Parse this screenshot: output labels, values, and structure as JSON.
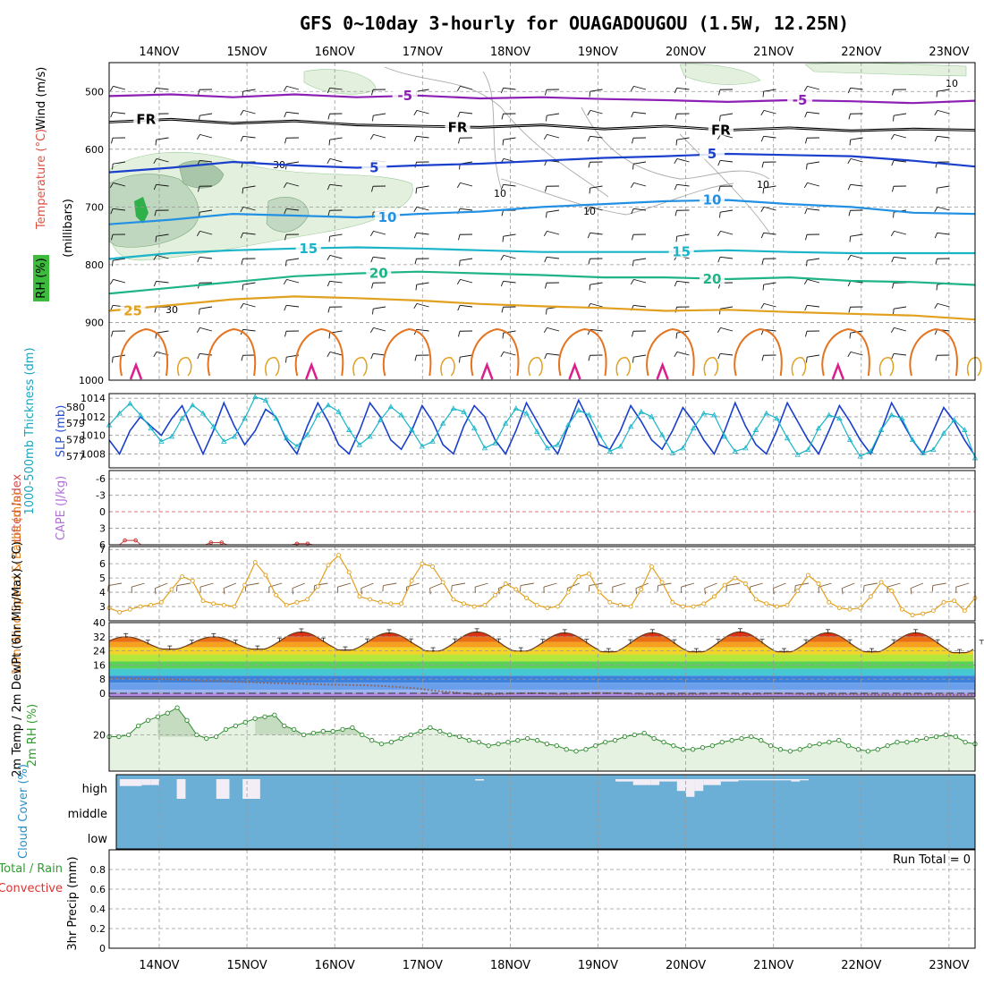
{
  "chart_data": {
    "type": "line",
    "title": "GFS 0~10day 3-hourly for OUAGADOUGOU (1.5W, 12.25N)",
    "x_dates": [
      "14NOV",
      "15NOV",
      "16NOV",
      "17NOV",
      "18NOV",
      "19NOV",
      "20NOV",
      "21NOV",
      "22NOV",
      "23NOV"
    ],
    "x_range_days": [
      -0.45,
      9.85
    ],
    "colors": {
      "purple": "#8c1fb4",
      "black": "#000000",
      "blue": "#1a3fcc",
      "midblue": "#2391e3",
      "cyan": "#19b4c8",
      "green": "#1fb487",
      "gold": "#e1a01e",
      "orange": "#e6731e",
      "magenta": "#dc1e8c",
      "cloud": "#6baed6",
      "rh_fill": "#e6f2e1",
      "temp_band": "#e6501e"
    },
    "panel_upper": {
      "ylabel": "(millibars)",
      "side_labels": {
        "wind": "Wind (m/s)",
        "temperature": "Temperature (°C)",
        "rh": "RH (%)"
      },
      "yticks": [
        500,
        600,
        700,
        800,
        900,
        1000
      ],
      "ylim": [
        450,
        1000
      ],
      "isotherms": [
        {
          "label": "-5",
          "color_key": "purple",
          "p": [
            508,
            505,
            510,
            505,
            510,
            507,
            512,
            510,
            513,
            515,
            518,
            515,
            517,
            520,
            516
          ],
          "labels_at": [
            2.8,
            7.3
          ]
        },
        {
          "label": "FR",
          "color_key": "black",
          "p": [
            553,
            548,
            555,
            551,
            558,
            560,
            562,
            558,
            565,
            560,
            567,
            563,
            568,
            565,
            567
          ],
          "labels_at": [
            -0.15,
            3.4,
            6.4
          ]
        },
        {
          "label": "5",
          "color_key": "blue",
          "p": [
            640,
            632,
            622,
            628,
            632,
            628,
            625,
            620,
            615,
            612,
            608,
            610,
            612,
            620,
            630
          ],
          "labels_at": [
            2.45,
            6.3
          ]
        },
        {
          "label": "10",
          "color_key": "midblue",
          "p": [
            730,
            722,
            712,
            715,
            718,
            712,
            708,
            700,
            695,
            690,
            688,
            695,
            700,
            710,
            712
          ],
          "labels_at": [
            2.6,
            6.3
          ]
        },
        {
          "label": "15",
          "color_key": "cyan",
          "p": [
            790,
            780,
            775,
            772,
            770,
            772,
            775,
            778,
            778,
            778,
            775,
            778,
            780,
            780,
            780
          ],
          "labels_at": [
            1.7,
            5.95
          ]
        },
        {
          "label": "20",
          "color_key": "green",
          "p": [
            850,
            840,
            830,
            820,
            815,
            812,
            815,
            818,
            822,
            822,
            825,
            822,
            828,
            830,
            835
          ],
          "labels_at": [
            2.5,
            6.3
          ]
        },
        {
          "label": "25",
          "color_key": "gold",
          "p": [
            880,
            870,
            860,
            855,
            858,
            862,
            868,
            872,
            875,
            880,
            878,
            882,
            885,
            888,
            895
          ],
          "labels_at": [
            -0.3
          ]
        }
      ],
      "rh_contour_labels": [
        "30",
        "30",
        "10",
        "10",
        "10",
        "10"
      ]
    },
    "panel_thickness_slp": {
      "ylabel_left": "1000-500mb Thickness (dm)",
      "ylabel_right": "SLP (mb)",
      "yticks_left": [
        577,
        578,
        579,
        580
      ],
      "yticks_right": [
        1008,
        1010,
        1012,
        1014
      ],
      "slp": [
        1009.5,
        1008,
        1010.5,
        1012,
        1011,
        1010,
        1011.8,
        1013.2,
        1010.5,
        1008,
        1010.5,
        1013.5,
        1011,
        1009,
        1010.5,
        1012.8,
        1012,
        1009.5,
        1008,
        1011,
        1013.5,
        1011.5,
        1009,
        1008,
        1010.5,
        1013.5,
        1012,
        1009.5,
        1008.5,
        1010.5,
        1013.2,
        1011.5,
        1009,
        1008,
        1011,
        1013.2,
        1012,
        1009.5,
        1008,
        1010.5,
        1013.5,
        1011.5,
        1009.5,
        1008,
        1011,
        1013.8,
        1011.5,
        1009,
        1008.5,
        1010.5,
        1013.2,
        1011.5,
        1009.5,
        1008.5,
        1010.5,
        1013,
        1011.5,
        1009.5,
        1008,
        1010.5,
        1013.5,
        1011,
        1009,
        1008,
        1010.5,
        1013.5,
        1011.5,
        1009.5,
        1008,
        1010.5,
        1013.2,
        1011.5,
        1009.5,
        1008,
        1010.5,
        1013.5,
        1011.5,
        1009.5,
        1008,
        1010.5,
        1013,
        1011.5,
        1009.5,
        1007.8
      ],
      "thickness": [
        578.9,
        579.6,
        580.2,
        579.5,
        578.7,
        577.9,
        578.2,
        579.3,
        580.1,
        579.6,
        578.8,
        577.9,
        578.2,
        579.3,
        580.6,
        580.4,
        579.3,
        578.1,
        577.6,
        578.3,
        579.5,
        580.1,
        579.7,
        578.6,
        577.7,
        578.2,
        579.2,
        580.0,
        579.5,
        578.6,
        577.6,
        577.9,
        579.0,
        579.9,
        579.7,
        578.7,
        577.5,
        577.8,
        579.0,
        579.9,
        579.6,
        578.5,
        577.5,
        577.7,
        578.9,
        579.8,
        579.5,
        578.3,
        577.3,
        577.6,
        578.8,
        579.7,
        579.4,
        578.3,
        577.2,
        577.5,
        578.7,
        579.6,
        579.5,
        578.2,
        577.3,
        577.5,
        578.6,
        579.6,
        579.3,
        578.1,
        577.1,
        577.4,
        578.7,
        579.5,
        579.3,
        578.0,
        577.0,
        577.3,
        578.6,
        579.5,
        579.3,
        578.0,
        577.2,
        577.4,
        578.4,
        579.2,
        578.6,
        576.9
      ]
    },
    "panel_cape_li": {
      "ylabel_left": "Lifted Index",
      "ylabel_right": "CAPE (J/kg)",
      "yticks": [
        "-6",
        "-3",
        "0",
        "3",
        "6"
      ],
      "lifted_index_peaks": [
        5.2,
        5.6,
        5.8
      ]
    },
    "panel_wind": {
      "ylabel": "10m Wind Speed & Barbs (m/s)",
      "yticks": [
        3,
        4,
        5,
        6,
        7
      ],
      "ylim": [
        2.2,
        7
      ],
      "speed": [
        2.9,
        2.6,
        2.8,
        3.0,
        3.1,
        3.3,
        4.2,
        5.1,
        4.8,
        3.4,
        3.2,
        3.1,
        3.0,
        4.5,
        6.1,
        5.2,
        3.8,
        3.1,
        3.3,
        3.5,
        4.4,
        5.9,
        6.6,
        5.4,
        3.7,
        3.5,
        3.3,
        3.2,
        3.2,
        4.8,
        6.0,
        5.8,
        4.7,
        3.5,
        3.2,
        3.0,
        3.1,
        3.8,
        4.6,
        4.2,
        3.6,
        3.1,
        2.9,
        3.0,
        4.0,
        5.1,
        5.3,
        4.0,
        3.3,
        3.1,
        3.0,
        4.2,
        5.8,
        4.7,
        3.3,
        3.0,
        3.0,
        3.2,
        3.7,
        4.5,
        5.0,
        4.6,
        3.5,
        3.2,
        3.0,
        3.1,
        4.1,
        5.2,
        4.6,
        3.3,
        2.9,
        2.8,
        2.9,
        3.7,
        4.7,
        4.1,
        2.8,
        2.4,
        2.5,
        2.7,
        3.3,
        3.4,
        2.7,
        3.6
      ]
    },
    "panel_temp": {
      "ylabel": "2m Temp / 2m DewPt (6hr Min/Max) (°C)",
      "yticks": [
        0,
        8,
        16,
        24,
        32,
        40
      ],
      "ylim": [
        -2,
        40
      ],
      "tmax_daily": [
        31.5,
        34,
        33.5,
        34,
        33.5,
        33.5,
        34,
        33.5,
        33.5,
        33.5
      ],
      "tmin_daily": [
        25,
        25,
        24.5,
        24,
        24,
        23.5,
        23.5,
        23.5,
        23.5,
        23
      ],
      "dewpoint": [
        8.5,
        8.5,
        8.2,
        8,
        7.6,
        7.2,
        7,
        6.5,
        6.3,
        5.8,
        5.6,
        5.3,
        5,
        4.8,
        4.6,
        4.2,
        3.6,
        2.8,
        1.5,
        0.6,
        -0.3,
        -0.7,
        -0.3,
        0,
        0,
        -0.4,
        -0.2,
        0.2,
        0.2,
        -0.3,
        -0.5,
        -0.7,
        -0.7,
        -0.4,
        -0.1,
        -0.6,
        -0.4,
        -0.1,
        -0.3,
        -0.7,
        -0.9,
        -0.5,
        -0.8,
        -1.0,
        -0.8,
        -0.6,
        -0.9,
        -1.0,
        -0.9
      ]
    },
    "panel_rh": {
      "ylabel": "2m RH (%)",
      "yticks": [
        20
      ],
      "ylim": [
        0,
        40
      ],
      "values": [
        19,
        19,
        20,
        25,
        28,
        30,
        32,
        35,
        28,
        20,
        18,
        19,
        23,
        25,
        27,
        29,
        30,
        31,
        25,
        23,
        20,
        21,
        22,
        22,
        23,
        24,
        20,
        17,
        15,
        16,
        18,
        20,
        22,
        24,
        22,
        20,
        19,
        17,
        16,
        14,
        15,
        16,
        17,
        18,
        17,
        15,
        14,
        12,
        11,
        12,
        14,
        16,
        17,
        19,
        20,
        21,
        18,
        16,
        14,
        12,
        12,
        13,
        14,
        16,
        17,
        18,
        19,
        17,
        14,
        12,
        11,
        12,
        14,
        15,
        16,
        17,
        14,
        12,
        11,
        12,
        14,
        16,
        16,
        17,
        18,
        19,
        20,
        19,
        16,
        15
      ],
      "shaded_peaks": [
        [
          0.25,
          0.95
        ],
        [
          1.4,
          2.6
        ]
      ]
    },
    "panel_cloud": {
      "ylabel": "Cloud Cover (%)",
      "levels": [
        "high",
        "middle",
        "low"
      ],
      "high_gaps": [
        [
          -0.45,
          -0.2,
          0.35
        ],
        [
          -0.2,
          -0.1,
          0.3
        ],
        [
          -0.1,
          0.0,
          0.3
        ],
        [
          0.2,
          0.3,
          1.0
        ],
        [
          0.65,
          0.8,
          1.0
        ],
        [
          0.95,
          1.15,
          1.0
        ],
        [
          3.6,
          3.7,
          0.07
        ],
        [
          5.2,
          5.4,
          0.12
        ],
        [
          5.4,
          5.6,
          0.3
        ],
        [
          5.6,
          5.7,
          0.3
        ],
        [
          5.7,
          5.9,
          0.12
        ],
        [
          5.9,
          6.0,
          0.6
        ],
        [
          6.0,
          6.1,
          0.9
        ],
        [
          6.1,
          6.2,
          0.6
        ],
        [
          6.2,
          6.4,
          0.3
        ],
        [
          6.4,
          6.6,
          0.12
        ],
        [
          6.6,
          7.2,
          0.06
        ],
        [
          7.2,
          7.3,
          0.12
        ],
        [
          7.3,
          7.4,
          0.06
        ]
      ]
    },
    "panel_precip": {
      "ylabel": "3hr Precip (mm)",
      "legend": [
        "Total / Rain",
        "Convective"
      ],
      "yticks": [
        0,
        0.2,
        0.4,
        0.6,
        0.8
      ],
      "ylim": [
        0,
        1.0
      ],
      "run_total_label": "Run Total = 0",
      "values": []
    }
  }
}
